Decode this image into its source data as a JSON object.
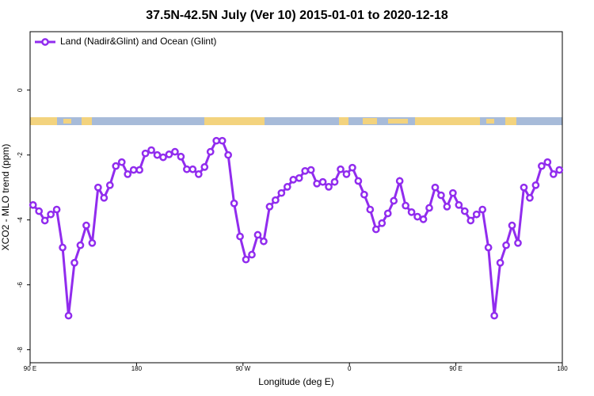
{
  "chart_data": {
    "type": "line",
    "title": "37.5N-42.5N July (Ver 10)   2015-01-01 to 2020-12-18",
    "x_label": "Longitude (deg E)",
    "y_label": "XCO2 - MLO trend (ppm)",
    "x": [
      92.5,
      97.5,
      102.5,
      107.5,
      112.5,
      117.5,
      122.5,
      127.5,
      132.5,
      137.5,
      142.5,
      147.5,
      152.5,
      157.5,
      162.5,
      167.5,
      172.5,
      177.5,
      182.5,
      187.5,
      192.5,
      197.5,
      202.5,
      207.5,
      212.5,
      217.5,
      222.5,
      227.5,
      232.5,
      237.5,
      242.5,
      247.5,
      252.5,
      257.5,
      262.5,
      267.5,
      272.5,
      277.5,
      282.5,
      287.5,
      292.5,
      297.5,
      302.5,
      307.5,
      312.5,
      317.5,
      322.5,
      327.5,
      332.5,
      337.5,
      342.5,
      347.5,
      352.5,
      357.5,
      362.5,
      367.5,
      372.5,
      377.5,
      382.5,
      387.5,
      392.5,
      397.5,
      402.5,
      407.5,
      412.5,
      417.5,
      422.5,
      427.5,
      432.5,
      437.5,
      442.5,
      447.5,
      452.5,
      457.5,
      462.5,
      467.5,
      472.5,
      477.5,
      482.5,
      487.5,
      492.5,
      497.5,
      502.5,
      507.5,
      512.5,
      517.5,
      522.5,
      527.5,
      532.5,
      537.5
    ],
    "series": [
      {
        "name": "Land (Nadir&Glint) and Ocean (Glint)",
        "color": "#912cee",
        "values": [
          -3.54,
          -3.73,
          -4.02,
          -3.83,
          -3.68,
          -4.85,
          -6.95,
          -5.32,
          -4.78,
          -4.17,
          -4.71,
          -3.0,
          -3.32,
          -2.93,
          -2.34,
          -2.22,
          -2.59,
          -2.46,
          -2.46,
          -1.95,
          -1.85,
          -2.0,
          -2.07,
          -1.98,
          -1.9,
          -2.05,
          -2.44,
          -2.44,
          -2.59,
          -2.37,
          -1.9,
          -1.56,
          -1.56,
          -2.0,
          -3.49,
          -4.51,
          -5.22,
          -5.07,
          -4.46,
          -4.66,
          -3.59,
          -3.39,
          -3.17,
          -2.98,
          -2.76,
          -2.71,
          -2.49,
          -2.46,
          -2.88,
          -2.83,
          -2.98,
          -2.83,
          -2.44,
          -2.59,
          -2.39,
          -2.8,
          -3.22,
          -3.68,
          -4.29,
          -4.1,
          -3.8,
          -3.41,
          -2.8,
          -3.56,
          -3.76,
          -3.9,
          -3.98,
          -3.63,
          -3.0,
          -3.24,
          -3.59,
          -3.17,
          -3.54,
          -3.73,
          -4.02,
          -3.83,
          -3.68,
          -4.85,
          -6.95,
          -5.32,
          -4.78,
          -4.17,
          -4.71,
          -3.0,
          -3.32,
          -2.93,
          -2.34,
          -2.22,
          -2.59,
          -2.46
        ]
      }
    ],
    "xlim": [
      90,
      540
    ],
    "xticks": [
      {
        "value": 90,
        "label": "90 E"
      },
      180,
      {
        "value": 270,
        "label": "90 W"
      },
      {
        "value": 360,
        "label": "0"
      },
      {
        "value": 450,
        "label": "90 E"
      },
      {
        "value": 540,
        "label": "180"
      }
    ],
    "ylim": [
      -8.4,
      1.8
    ],
    "yticks": [
      0,
      -2,
      -4,
      -6,
      -8
    ],
    "legend": "top-left"
  }
}
